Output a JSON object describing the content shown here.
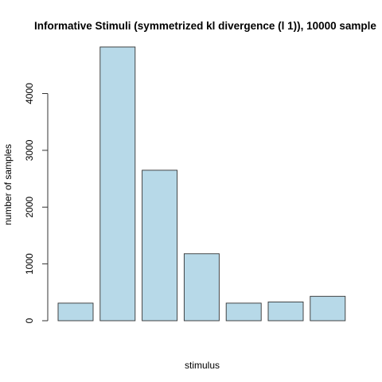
{
  "chart_data": {
    "type": "bar",
    "title": "Informative Stimuli (symmetrized kl divergence (l 1)), 10000 sample",
    "xlabel": "stimulus",
    "ylabel": "number of samples",
    "categories": [
      "",
      "",
      "",
      "",
      "",
      "",
      ""
    ],
    "values": [
      310,
      4820,
      2650,
      1180,
      310,
      330,
      430
    ],
    "ylim": [
      0,
      4820
    ],
    "yticks": [
      0,
      1000,
      2000,
      3000,
      4000
    ],
    "bar_color": "#b7d9e8",
    "grid": false
  }
}
